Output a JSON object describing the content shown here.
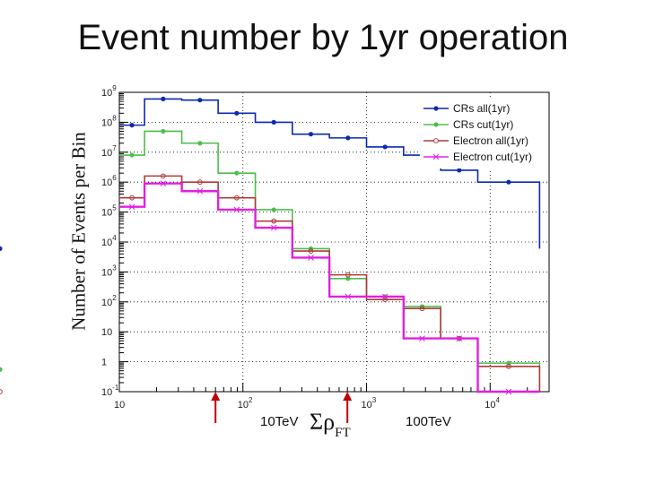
{
  "slide_title": "Event number by 1yr operation",
  "markers": [
    {
      "label": "10TeV",
      "x": 60,
      "color": "#c00000"
    },
    {
      "label": "100TeV",
      "x": 700,
      "color": "#c00000"
    }
  ],
  "chart_data": {
    "type": "line",
    "style": "step histogram",
    "title": "",
    "xlabel_symbol": "Σρ",
    "xlabel_sub": "FT",
    "ylabel": "Number of Events per Bin",
    "xscale": "log",
    "yscale": "log",
    "xlim": [
      10,
      30000
    ],
    "ylim": [
      0.1,
      1000000000
    ],
    "x_ticks": [
      {
        "value": 10,
        "label": "10",
        "sup": ""
      },
      {
        "value": 100,
        "label": "10",
        "sup": "2"
      },
      {
        "value": 1000,
        "label": "10",
        "sup": "3"
      },
      {
        "value": 10000,
        "label": "10",
        "sup": "4"
      }
    ],
    "y_ticks": [
      {
        "value": 0.1,
        "label": "10",
        "sup": "-1"
      },
      {
        "value": 1,
        "label": "1",
        "sup": ""
      },
      {
        "value": 10,
        "label": "10",
        "sup": ""
      },
      {
        "value": 100,
        "label": "10",
        "sup": "2"
      },
      {
        "value": 1000,
        "label": "10",
        "sup": "3"
      },
      {
        "value": 10000,
        "label": "10",
        "sup": "4"
      },
      {
        "value": 100000,
        "label": "10",
        "sup": "5"
      },
      {
        "value": 1000000,
        "label": "10",
        "sup": "6"
      },
      {
        "value": 10000000,
        "label": "10",
        "sup": "7"
      },
      {
        "value": 100000000,
        "label": "10",
        "sup": "8"
      },
      {
        "value": 1000000000,
        "label": "10",
        "sup": "9"
      }
    ],
    "grid": "dotted at major decades",
    "legend_position": "top-right",
    "bin_edges": [
      10,
      16,
      32,
      63,
      126,
      251,
      501,
      1000,
      1995,
      3981,
      7943,
      25119
    ],
    "series": [
      {
        "name": "CRs all(1yr)",
        "color": "#0a2ab0",
        "marker": "dot",
        "values": [
          80000000,
          600000000,
          550000000,
          200000000,
          100000000,
          40000000,
          30000000,
          15000000,
          8000000,
          2500000,
          1000000,
          6000
        ]
      },
      {
        "name": "CRs cut(1yr)",
        "color": "#4cbf4c",
        "marker": "dot",
        "values": [
          8000000,
          50000000,
          20000000,
          2000000,
          120000,
          6000,
          600,
          150,
          70,
          6,
          0.9,
          0.55
        ]
      },
      {
        "name": "Electron all(1yr)",
        "color": "#b03a3a",
        "marker": "open-circle",
        "values": [
          300000,
          1600000,
          1000000,
          300000,
          50000,
          5000,
          800,
          120,
          60,
          6,
          0.7,
          0.1
        ]
      },
      {
        "name": "Electron cut(1yr)",
        "color": "#e020e0",
        "marker": "cross",
        "values": [
          150000,
          900000,
          500000,
          120000,
          30000,
          3000,
          150,
          150,
          6,
          6,
          0.1,
          0.1
        ]
      }
    ]
  }
}
